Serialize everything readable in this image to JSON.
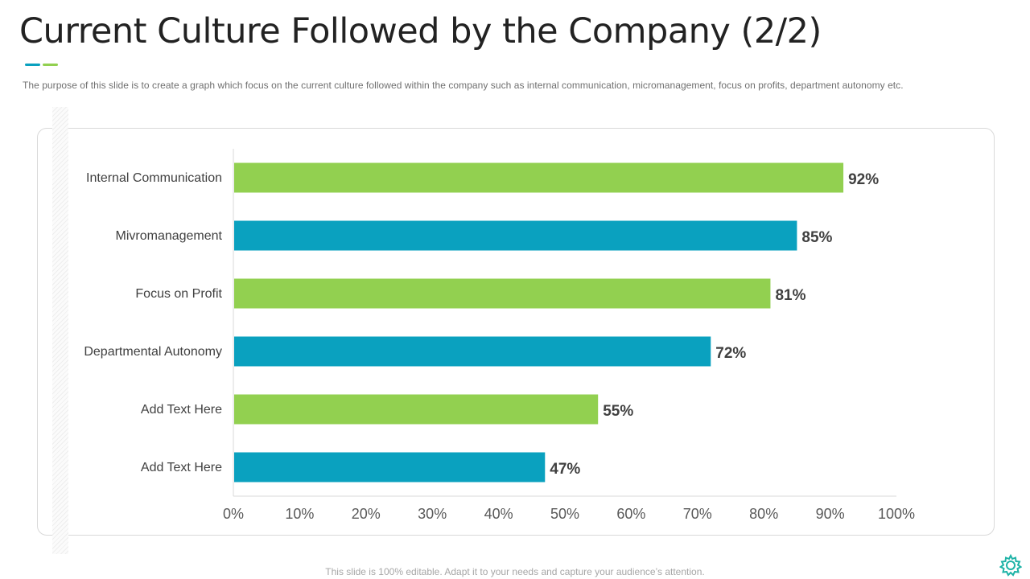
{
  "slide": {
    "title": "Current Culture Followed by the Company (2/2)",
    "subtitle": "The purpose of this slide is to create a graph which focus on the current culture followed within the company such as internal communication, micromanagement, focus on profits, department autonomy etc.",
    "footer": "This slide is 100% editable. Adapt it to your needs and capture your audience’s attention."
  },
  "colors": {
    "green": "#92d050",
    "teal": "#0aa1bf",
    "axis": "#d9d9d9",
    "label": "#404040",
    "value": "#404040",
    "tick": "#595959"
  },
  "icons": {
    "settings": "gear-icon"
  },
  "chart_data": {
    "type": "bar",
    "orientation": "horizontal",
    "title": "",
    "xlabel": "",
    "ylabel": "",
    "categories": [
      "Internal Communication",
      "Mivromanagement",
      "Focus on Profit",
      "Departmental Autonomy",
      "Add Text Here",
      "Add Text Here"
    ],
    "values": [
      92,
      85,
      81,
      72,
      55,
      47
    ],
    "value_labels": [
      "92%",
      "85%",
      "81%",
      "72%",
      "55%",
      "47%"
    ],
    "bar_colors": [
      "#92d050",
      "#0aa1bf",
      "#92d050",
      "#0aa1bf",
      "#92d050",
      "#0aa1bf"
    ],
    "xlim": [
      0,
      100
    ],
    "x_ticks": [
      0,
      10,
      20,
      30,
      40,
      50,
      60,
      70,
      80,
      90,
      100
    ],
    "x_tick_labels": [
      "0%",
      "10%",
      "20%",
      "30%",
      "40%",
      "50%",
      "60%",
      "70%",
      "80%",
      "90%",
      "100%"
    ],
    "grid": false,
    "legend": "none"
  }
}
